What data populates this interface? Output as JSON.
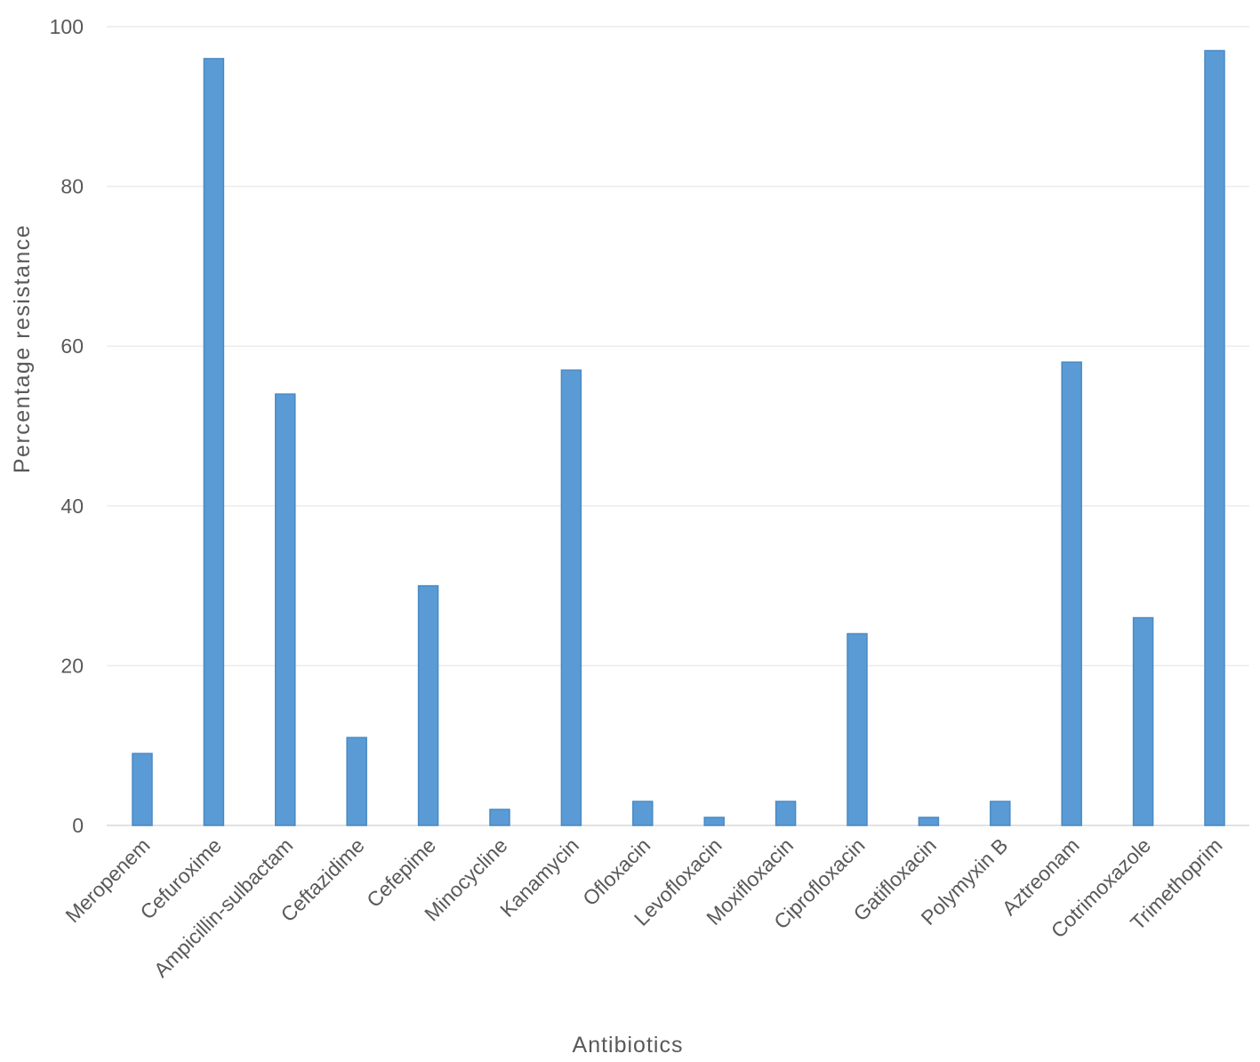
{
  "chart_data": {
    "type": "bar",
    "title": "",
    "xlabel": "Antibiotics",
    "ylabel": "Percentage resistance",
    "ylim": [
      0,
      100
    ],
    "yticks": [
      0,
      20,
      40,
      60,
      80,
      100
    ],
    "grid": true,
    "legend": "none",
    "bar_color": "#5b9bd5",
    "categories": [
      "Meropenem",
      "Cefuroxime",
      "Ampicillin-sulbactam",
      "Ceftazidime",
      "Cefepime",
      "Minocycline",
      "Kanamycin",
      "Ofloxacin",
      "Levofloxacin",
      "Moxifloxacin",
      "Ciprofloxacin",
      "Gatifloxacin",
      "Polymyxin B",
      "Aztreonam",
      "Cotrimoxazole",
      "Trimethoprim"
    ],
    "values": [
      9,
      96,
      54,
      11,
      30,
      2,
      57,
      3,
      1,
      3,
      24,
      1,
      3,
      58,
      26,
      97
    ]
  }
}
